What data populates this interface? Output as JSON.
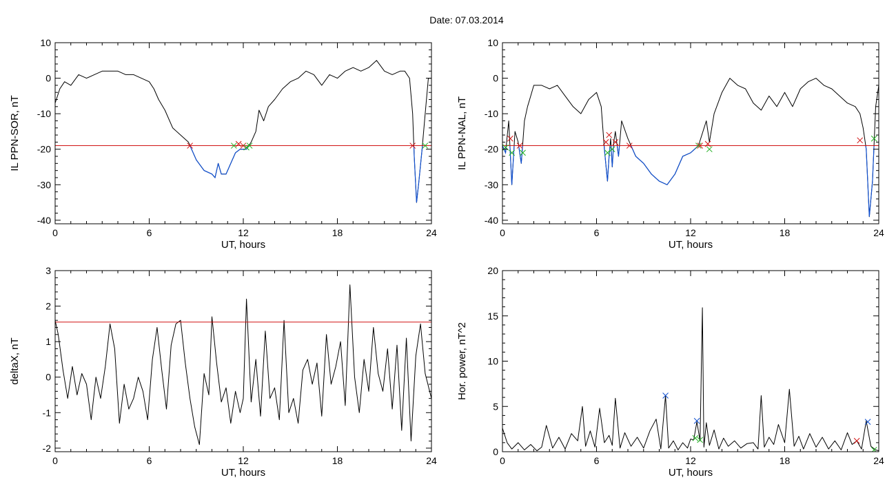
{
  "figure": {
    "title": "Date:  07.03.2014"
  },
  "colors": {
    "trace": "#000000",
    "threshold": "#d01010",
    "below_threshold": "#1050d0",
    "marker_red": "#d01010",
    "marker_green": "#20b020",
    "marker_blue": "#1050d0",
    "axis": "#000000"
  },
  "chart_data": [
    {
      "id": "il-sor",
      "type": "line",
      "title": "",
      "xlabel": "UT, hours",
      "ylabel": "IL PPN-SOR, nT",
      "xlim": [
        0,
        24
      ],
      "ylim": [
        -41,
        10
      ],
      "xticks": [
        0,
        6,
        12,
        18,
        24
      ],
      "yticks": [
        -40,
        -30,
        -20,
        -10,
        0,
        10
      ],
      "grid": false,
      "threshold": -19,
      "series": [
        {
          "x": [
            0,
            0.3,
            0.6,
            1,
            1.5,
            2,
            2.5,
            3,
            3.5,
            4,
            4.5,
            5,
            5.5,
            6,
            6.3,
            6.6,
            7,
            7.5,
            8,
            8.5,
            9,
            9.5,
            10,
            10.2,
            10.4,
            10.6,
            10.9,
            11.2,
            11.5,
            11.8,
            12,
            12.2,
            12.5,
            12.8,
            13,
            13.3,
            13.6,
            14,
            14.5,
            15,
            15.5,
            16,
            16.5,
            17,
            17.5,
            18,
            18.5,
            19,
            19.5,
            20,
            20.5,
            21,
            21.5,
            22,
            22.3,
            22.6,
            22.8,
            22.9,
            23.05,
            23.2,
            23.4,
            23.6,
            23.8,
            24
          ],
          "y": [
            -7,
            -3,
            -1,
            -2,
            1,
            0,
            1,
            2,
            2,
            2,
            1,
            1,
            0,
            -1,
            -3,
            -6,
            -9,
            -14,
            -16,
            -18,
            -23,
            -26,
            -27,
            -28,
            -24,
            -27,
            -27,
            -24,
            -21,
            -20,
            -20,
            -20,
            -18,
            -15,
            -9,
            -12,
            -8,
            -6,
            -3,
            -1,
            0,
            2,
            1,
            -2,
            1,
            0,
            2,
            3,
            2,
            3,
            5,
            2,
            1,
            2,
            2,
            0,
            -10,
            -22,
            -35,
            -29,
            -20,
            -10,
            0,
            0
          ]
        }
      ],
      "markers": [
        {
          "x": 8.6,
          "y": -19,
          "color": "red"
        },
        {
          "x": 11.4,
          "y": -19,
          "color": "green"
        },
        {
          "x": 11.7,
          "y": -18.5,
          "color": "red"
        },
        {
          "x": 12.0,
          "y": -19,
          "color": "red"
        },
        {
          "x": 12.2,
          "y": -19.5,
          "color": "green"
        },
        {
          "x": 12.4,
          "y": -19,
          "color": "green"
        },
        {
          "x": 22.8,
          "y": -19,
          "color": "red"
        },
        {
          "x": 23.6,
          "y": -19,
          "color": "green"
        }
      ]
    },
    {
      "id": "il-nal",
      "type": "line",
      "title": "",
      "xlabel": "UT, hours",
      "ylabel": "IL PPN-NAL, nT",
      "xlim": [
        0,
        24
      ],
      "ylim": [
        -41,
        10
      ],
      "xticks": [
        0,
        6,
        12,
        18,
        24
      ],
      "yticks": [
        -40,
        -30,
        -20,
        -10,
        0,
        10
      ],
      "grid": false,
      "threshold": -19,
      "series": [
        {
          "x": [
            0,
            0.2,
            0.4,
            0.6,
            0.8,
            1,
            1.2,
            1.4,
            1.6,
            1.8,
            2,
            2.5,
            3,
            3.5,
            4,
            4.5,
            5,
            5.5,
            6,
            6.3,
            6.5,
            6.7,
            6.8,
            6.9,
            7,
            7.1,
            7.2,
            7.4,
            7.6,
            8,
            8.5,
            9,
            9.5,
            10,
            10.5,
            11,
            11.5,
            12,
            12.5,
            13,
            13.2,
            13.5,
            14,
            14.5,
            15,
            15.5,
            16,
            16.5,
            17,
            17.5,
            18,
            18.5,
            19,
            19.5,
            20,
            20.5,
            21,
            21.5,
            22,
            22.5,
            22.8,
            23,
            23.2,
            23.4,
            23.6,
            23.8,
            24
          ],
          "y": [
            -19,
            -21,
            -12,
            -30,
            -15,
            -18,
            -24,
            -12,
            -8,
            -5,
            -2,
            -2,
            -3,
            -2,
            -5,
            -8,
            -10,
            -6,
            -4,
            -8,
            -20,
            -29,
            -22,
            -17,
            -25,
            -18,
            -15,
            -22,
            -12,
            -17,
            -22,
            -24,
            -27,
            -29,
            -30,
            -27,
            -22,
            -21,
            -19,
            -12,
            -18,
            -10,
            -4,
            0,
            -2,
            -3,
            -7,
            -9,
            -5,
            -8,
            -4,
            -8,
            -3,
            -1,
            0,
            -2,
            -3,
            -5,
            -7,
            -8,
            -10,
            -14,
            -20,
            -39,
            -29,
            -8,
            -2
          ]
        }
      ],
      "markers": [
        {
          "x": 0.2,
          "y": -19.5,
          "color": "green"
        },
        {
          "x": 0.5,
          "y": -17,
          "color": "red"
        },
        {
          "x": 0.6,
          "y": -21,
          "color": "green"
        },
        {
          "x": 1.1,
          "y": -19,
          "color": "red"
        },
        {
          "x": 1.3,
          "y": -21,
          "color": "green"
        },
        {
          "x": 6.6,
          "y": -18,
          "color": "red"
        },
        {
          "x": 6.7,
          "y": -21,
          "color": "green"
        },
        {
          "x": 6.8,
          "y": -16,
          "color": "red"
        },
        {
          "x": 7.0,
          "y": -20,
          "color": "green"
        },
        {
          "x": 7.2,
          "y": -18,
          "color": "red"
        },
        {
          "x": 8.1,
          "y": -19,
          "color": "red"
        },
        {
          "x": 12.5,
          "y": -19,
          "color": "green"
        },
        {
          "x": 12.6,
          "y": -19,
          "color": "red"
        },
        {
          "x": 13.1,
          "y": -18.5,
          "color": "red"
        },
        {
          "x": 13.2,
          "y": -20,
          "color": "green"
        },
        {
          "x": 22.8,
          "y": -17.5,
          "color": "red"
        },
        {
          "x": 23.7,
          "y": -17,
          "color": "green"
        }
      ]
    },
    {
      "id": "deltax",
      "type": "line",
      "title": "",
      "xlabel": "UT, hours",
      "ylabel": "deltaX, nT",
      "xlim": [
        0,
        24
      ],
      "ylim": [
        -2.1,
        3
      ],
      "xticks": [
        0,
        6,
        12,
        18,
        24
      ],
      "yticks": [
        -2,
        -1,
        0,
        1,
        2,
        3
      ],
      "grid": false,
      "threshold": 1.55,
      "series": [
        {
          "x": [
            0,
            0.2,
            0.5,
            0.8,
            1.1,
            1.4,
            1.7,
            2,
            2.3,
            2.6,
            2.9,
            3.2,
            3.5,
            3.8,
            4.1,
            4.4,
            4.7,
            5,
            5.3,
            5.6,
            5.9,
            6.2,
            6.5,
            6.8,
            7.1,
            7.4,
            7.7,
            8,
            8.3,
            8.6,
            8.9,
            9.2,
            9.5,
            9.8,
            10,
            10.3,
            10.6,
            10.9,
            11.2,
            11.5,
            11.8,
            12,
            12.2,
            12.5,
            12.8,
            13.1,
            13.4,
            13.7,
            14,
            14.3,
            14.6,
            14.9,
            15.2,
            15.5,
            15.8,
            16.1,
            16.4,
            16.7,
            17,
            17.3,
            17.6,
            17.9,
            18.2,
            18.5,
            18.8,
            19.1,
            19.4,
            19.7,
            20,
            20.3,
            20.6,
            20.9,
            21.2,
            21.5,
            21.8,
            22.1,
            22.4,
            22.7,
            23,
            23.3,
            23.6,
            24
          ],
          "y": [
            1.6,
            1.2,
            0.2,
            -0.6,
            0.3,
            -0.5,
            0.1,
            -0.2,
            -1.2,
            0.0,
            -0.6,
            0.3,
            1.5,
            0.8,
            -1.3,
            -0.2,
            -0.9,
            -0.6,
            0.0,
            -0.4,
            -1.2,
            0.5,
            1.4,
            0.2,
            -0.9,
            0.9,
            1.5,
            1.6,
            0.4,
            -0.6,
            -1.4,
            -1.9,
            0.1,
            -0.5,
            1.7,
            0.4,
            -0.7,
            -0.3,
            -1.3,
            -0.4,
            -1.0,
            -0.6,
            2.2,
            -0.7,
            0.5,
            -1.1,
            1.3,
            -0.6,
            -0.3,
            -1.2,
            1.6,
            -1.0,
            -0.6,
            -1.3,
            0.2,
            0.5,
            -0.2,
            0.4,
            -1.1,
            1.2,
            -0.2,
            0.3,
            1.0,
            -0.8,
            2.6,
            0.0,
            -1.0,
            0.5,
            -0.4,
            1.4,
            0.1,
            -0.4,
            0.8,
            -0.9,
            0.9,
            -1.5,
            1.1,
            -1.8,
            0.6,
            1.5,
            0.1,
            -0.6
          ]
        }
      ],
      "markers": []
    },
    {
      "id": "hor-power",
      "type": "line",
      "title": "",
      "xlabel": "UT, hours",
      "ylabel": "Hor. power, nT^2",
      "xlim": [
        0,
        24
      ],
      "ylim": [
        0,
        20
      ],
      "xticks": [
        0,
        6,
        12,
        18,
        24
      ],
      "yticks": [
        0,
        5,
        10,
        15,
        20
      ],
      "grid": false,
      "threshold": null,
      "series": [
        {
          "x": [
            0,
            0.3,
            0.6,
            1,
            1.4,
            1.8,
            2.2,
            2.5,
            2.8,
            3.2,
            3.6,
            4,
            4.4,
            4.8,
            5.1,
            5.3,
            5.6,
            5.9,
            6.2,
            6.5,
            6.8,
            7,
            7.2,
            7.5,
            7.8,
            8.2,
            8.6,
            9,
            9.4,
            9.8,
            10.1,
            10.4,
            10.6,
            10.9,
            11.2,
            11.5,
            11.8,
            12,
            12.2,
            12.4,
            12.6,
            12.75,
            12.85,
            13,
            13.2,
            13.5,
            13.8,
            14.1,
            14.4,
            14.8,
            15.2,
            15.6,
            16,
            16.3,
            16.5,
            16.7,
            17,
            17.3,
            17.6,
            18,
            18.3,
            18.6,
            18.9,
            19.2,
            19.6,
            20,
            20.4,
            20.8,
            21.2,
            21.6,
            22,
            22.3,
            22.6,
            22.9,
            23.2,
            23.5,
            23.8,
            24
          ],
          "y": [
            2.6,
            1.0,
            0.3,
            1.0,
            0.2,
            0.8,
            0.1,
            0.5,
            2.9,
            0.4,
            1.6,
            0.3,
            2.0,
            1.2,
            5.0,
            0.6,
            2.3,
            0.5,
            4.8,
            1.0,
            1.8,
            0.7,
            5.9,
            0.4,
            2.1,
            0.6,
            1.6,
            0.4,
            2.3,
            3.6,
            0.3,
            6.2,
            0.4,
            1.2,
            0.2,
            1.0,
            0.4,
            1.4,
            1.3,
            3.3,
            1.2,
            15.9,
            0.5,
            3.2,
            0.7,
            2.4,
            0.3,
            1.5,
            0.6,
            1.2,
            0.4,
            0.9,
            1.0,
            0.3,
            6.2,
            0.5,
            1.6,
            0.8,
            3.0,
            1.0,
            6.9,
            0.6,
            1.7,
            0.3,
            2.0,
            0.5,
            1.6,
            0.3,
            1.2,
            0.2,
            2.1,
            0.8,
            1.2,
            0.3,
            3.4,
            0.6,
            0.2,
            0.1
          ]
        }
      ],
      "markers": [
        {
          "x": 10.4,
          "y": 6.2,
          "color": "blue"
        },
        {
          "x": 12.3,
          "y": 1.5,
          "color": "green"
        },
        {
          "x": 12.4,
          "y": 3.4,
          "color": "blue"
        },
        {
          "x": 12.6,
          "y": 1.3,
          "color": "green"
        },
        {
          "x": 22.6,
          "y": 1.2,
          "color": "red"
        },
        {
          "x": 23.3,
          "y": 3.3,
          "color": "blue"
        },
        {
          "x": 23.7,
          "y": 0.2,
          "color": "green"
        }
      ]
    }
  ]
}
